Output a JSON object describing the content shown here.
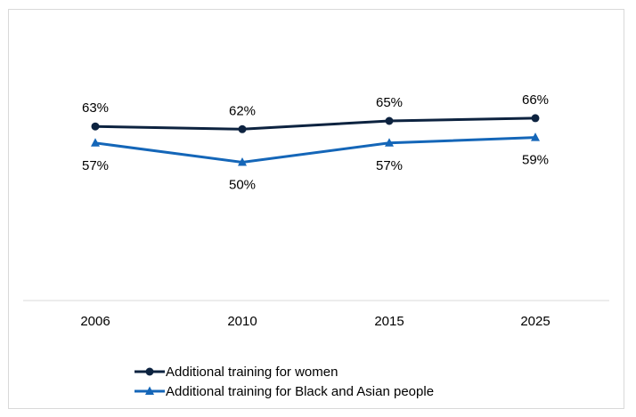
{
  "chart_data": {
    "type": "line",
    "categories": [
      "2006",
      "2010",
      "2015",
      "2025"
    ],
    "ylim": [
      0,
      100
    ],
    "grid": false,
    "legend_position": "bottom",
    "series": [
      {
        "name": "Additional training for women",
        "values": [
          63,
          62,
          65,
          66
        ],
        "labels": [
          "63%",
          "62%",
          "65%",
          "66%"
        ],
        "color": "#0d2340",
        "marker": "circle"
      },
      {
        "name": "Additional training for Black and Asian people",
        "values": [
          57,
          50,
          57,
          59
        ],
        "labels": [
          "57%",
          "50%",
          "57%",
          "59%"
        ],
        "color": "#1466b8",
        "marker": "triangle"
      }
    ]
  }
}
